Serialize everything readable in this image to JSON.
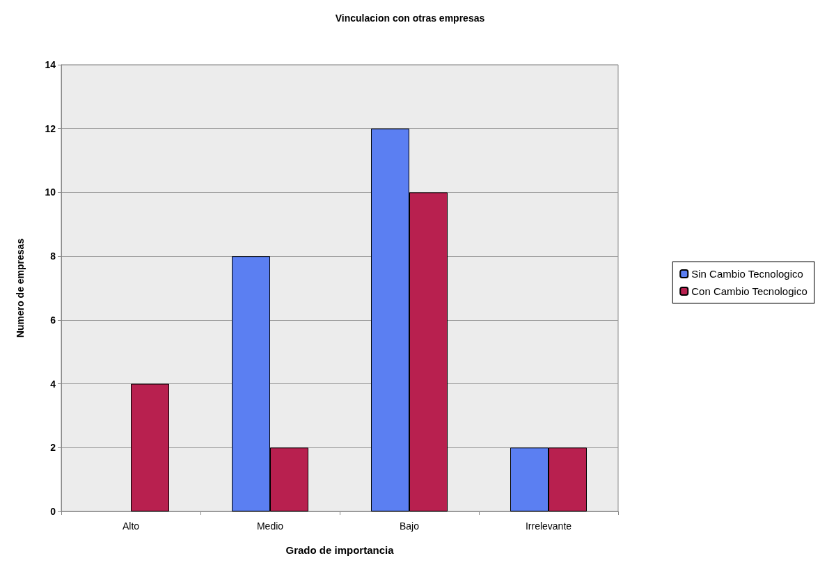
{
  "chart_data": {
    "type": "bar",
    "title": "Vinculacion con otras empresas",
    "xlabel": "Grado de importancia",
    "ylabel": "Numero de empresas",
    "categories": [
      "Alto",
      "Medio",
      "Bajo",
      "Irrelevante"
    ],
    "series": [
      {
        "name": "Sin Cambio Tecnologico",
        "color": "#5b7ff2",
        "values": [
          0,
          8,
          12,
          2
        ]
      },
      {
        "name": "Con Cambio Tecnologico",
        "color": "#b8204f",
        "values": [
          4,
          2,
          10,
          2
        ]
      }
    ],
    "ylim": [
      0,
      14
    ],
    "yticks": [
      0,
      2,
      4,
      6,
      8,
      10,
      12,
      14
    ],
    "grid": "y",
    "legend": "right"
  }
}
